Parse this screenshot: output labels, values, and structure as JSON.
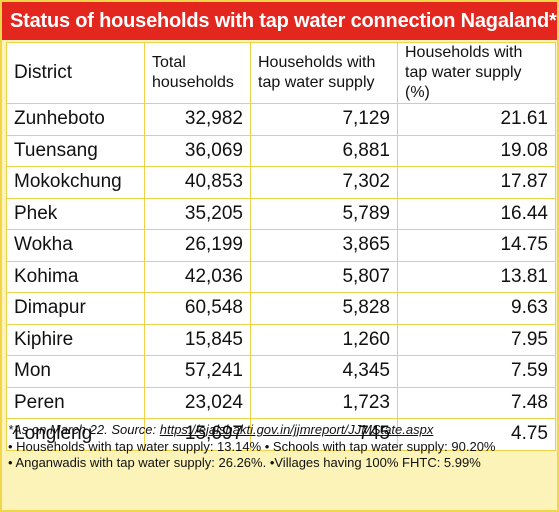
{
  "title": "Status of households with tap water connection Nagaland*",
  "chart_data": {
    "type": "table",
    "title": "Status of households with tap water connection Nagaland*",
    "columns": [
      "District",
      "Total households",
      "Households with tap water supply",
      "Households with tap water supply (%)"
    ],
    "rows": [
      [
        "Zunheboto",
        "32,982",
        "7,129",
        "21.61"
      ],
      [
        "Tuensang",
        "36,069",
        "6,881",
        "19.08"
      ],
      [
        "Mokokchung",
        "40,853",
        "7,302",
        "17.87"
      ],
      [
        "Phek",
        "35,205",
        "5,789",
        "16.44"
      ],
      [
        "Wokha",
        "26,199",
        "3,865",
        "14.75"
      ],
      [
        "Kohima",
        "42,036",
        "5,807",
        "13.81"
      ],
      [
        "Dimapur",
        "60,548",
        "5,828",
        "9.63"
      ],
      [
        "Kiphire",
        "15,845",
        "1,260",
        "7.95"
      ],
      [
        "Mon",
        "57,241",
        "4,345",
        "7.59"
      ],
      [
        "Peren",
        "23,024",
        "1,723",
        "7.48"
      ],
      [
        "Longleng",
        "15,697",
        "745",
        "4.75"
      ]
    ]
  },
  "notes": {
    "source_prefix": "*As on March 22. Source: ",
    "source_link": "https://ejalshakti.gov.in/jjmreport/JJMState.aspx",
    "line2": "• Households with tap water supply: 13.14% • Schools with tap water supply: 90.20%",
    "line3": "• Anganwadis with tap water supply: 26.26%. •Villages having 100% FHTC: 5.99%"
  },
  "colors": {
    "title_bg": "#e3261e",
    "title_text": "#ffffff",
    "background": "#fbf3b7",
    "border": "#f0d24a"
  }
}
